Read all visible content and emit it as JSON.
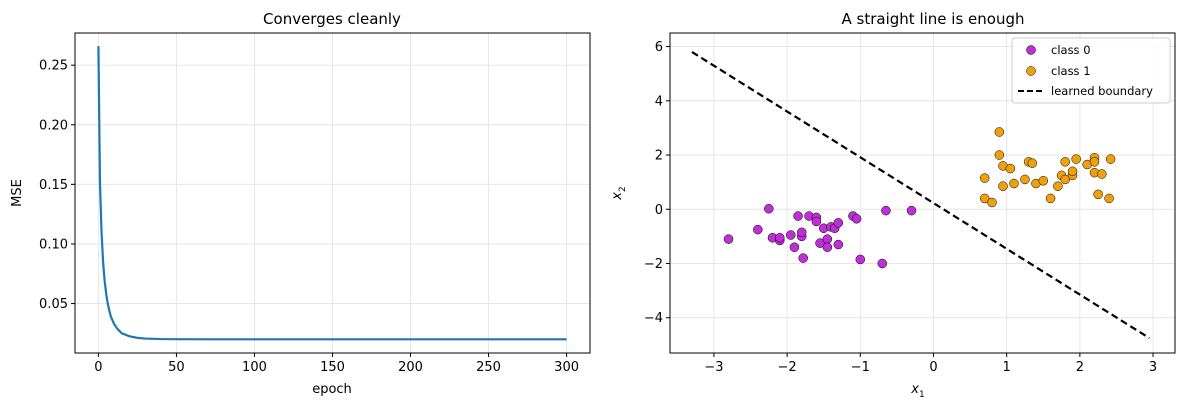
{
  "chart_data": [
    {
      "type": "line",
      "title": "Converges cleanly",
      "xlabel": "epoch",
      "ylabel": "MSE",
      "xlim": [
        -15,
        315
      ],
      "ylim": [
        0.0085,
        0.277
      ],
      "xticks": [
        0,
        50,
        100,
        150,
        200,
        250,
        300
      ],
      "yticks": [
        0.05,
        0.1,
        0.15,
        0.2,
        0.25
      ],
      "ytick_labels": [
        "0.05",
        "0.10",
        "0.15",
        "0.20",
        "0.25"
      ],
      "grid": true,
      "series": [
        {
          "color": "#1f77b4",
          "x": [
            0,
            1,
            2,
            3,
            4,
            5,
            6,
            7,
            8,
            10,
            12,
            15,
            20,
            25,
            30,
            40,
            50,
            75,
            100,
            150,
            200,
            250,
            300
          ],
          "y": [
            0.266,
            0.152,
            0.11,
            0.085,
            0.069,
            0.058,
            0.05,
            0.044,
            0.039,
            0.033,
            0.029,
            0.025,
            0.0225,
            0.0212,
            0.0206,
            0.0202,
            0.0201,
            0.02,
            0.02,
            0.02,
            0.02,
            0.02,
            0.02
          ]
        }
      ]
    },
    {
      "type": "scatter",
      "title": "A straight line is enough",
      "xlabel_base": "x",
      "xlabel_sub": "1",
      "ylabel_base": "x",
      "ylabel_sub": "2",
      "xlim": [
        -3.6,
        3.3
      ],
      "ylim": [
        -5.3,
        6.5
      ],
      "xticks": [
        -3,
        -2,
        -1,
        0,
        1,
        2,
        3
      ],
      "xtick_labels": [
        "−3",
        "−2",
        "−1",
        "0",
        "1",
        "2",
        "3"
      ],
      "yticks": [
        -4,
        -2,
        0,
        2,
        4,
        6
      ],
      "ytick_labels": [
        "−4",
        "−2",
        "0",
        "2",
        "4",
        "6"
      ],
      "grid": true,
      "legend_position": "top-right",
      "series": [
        {
          "name": "class 0",
          "color": "#bf2fd6",
          "points": [
            [
              -2.8,
              -1.1
            ],
            [
              -2.4,
              -0.75
            ],
            [
              -2.25,
              0.02
            ],
            [
              -2.2,
              -1.05
            ],
            [
              -2.1,
              -1.15
            ],
            [
              -2.1,
              -1.05
            ],
            [
              -1.95,
              -0.95
            ],
            [
              -1.9,
              -1.4
            ],
            [
              -1.85,
              -0.25
            ],
            [
              -1.8,
              -1.0
            ],
            [
              -1.8,
              -0.85
            ],
            [
              -1.78,
              -1.8
            ],
            [
              -1.7,
              -0.25
            ],
            [
              -1.6,
              -0.3
            ],
            [
              -1.6,
              -0.45
            ],
            [
              -1.55,
              -1.25
            ],
            [
              -1.5,
              -0.7
            ],
            [
              -1.45,
              -1.1
            ],
            [
              -1.45,
              -1.4
            ],
            [
              -1.4,
              -0.65
            ],
            [
              -1.35,
              -0.7
            ],
            [
              -1.3,
              -0.5
            ],
            [
              -1.3,
              -1.3
            ],
            [
              -1.1,
              -0.25
            ],
            [
              -1.05,
              -0.35
            ],
            [
              -1.0,
              -1.85
            ],
            [
              -0.65,
              -0.05
            ],
            [
              -0.7,
              -2.0
            ],
            [
              -0.3,
              -0.05
            ]
          ]
        },
        {
          "name": "class 1",
          "color": "#f0a00c",
          "points": [
            [
              0.7,
              1.15
            ],
            [
              0.7,
              0.4
            ],
            [
              0.8,
              0.25
            ],
            [
              0.9,
              2.85
            ],
            [
              0.9,
              2.0
            ],
            [
              0.95,
              0.85
            ],
            [
              0.95,
              1.6
            ],
            [
              1.05,
              1.5
            ],
            [
              1.1,
              0.95
            ],
            [
              1.25,
              1.1
            ],
            [
              1.3,
              1.75
            ],
            [
              1.35,
              1.7
            ],
            [
              1.4,
              0.95
            ],
            [
              1.5,
              1.05
            ],
            [
              1.6,
              0.4
            ],
            [
              1.7,
              0.85
            ],
            [
              1.75,
              1.25
            ],
            [
              1.8,
              1.75
            ],
            [
              1.8,
              1.1
            ],
            [
              1.9,
              1.25
            ],
            [
              1.9,
              1.4
            ],
            [
              1.95,
              1.85
            ],
            [
              2.1,
              1.65
            ],
            [
              2.2,
              1.9
            ],
            [
              2.2,
              1.75
            ],
            [
              2.2,
              1.35
            ],
            [
              2.25,
              0.55
            ],
            [
              2.3,
              1.3
            ],
            [
              2.4,
              0.4
            ],
            [
              2.42,
              1.85
            ]
          ]
        },
        {
          "name": "learned boundary",
          "type": "line",
          "style": "dashed",
          "color": "#000000",
          "x": [
            -3.3,
            2.95
          ],
          "y": [
            5.8,
            -4.75
          ]
        }
      ]
    }
  ]
}
